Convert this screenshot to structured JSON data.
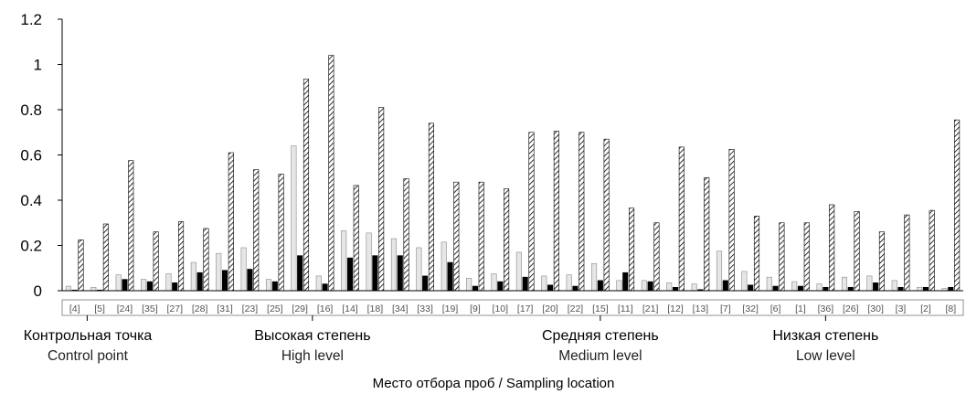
{
  "chart_data": {
    "type": "bar",
    "xlabel": "Место отбора проб / Sampling location",
    "ylim": [
      0,
      1.2
    ],
    "yticks": [
      "0",
      "0.2",
      "0.4",
      "0.6",
      "0.8",
      "1",
      "1.2"
    ],
    "categories": [
      "[4]",
      "[5]",
      "[24]",
      "[35]",
      "[27]",
      "[28]",
      "[31]",
      "[23]",
      "[25]",
      "[29]",
      "[16]",
      "[14]",
      "[18]",
      "[34]",
      "[33]",
      "[19]",
      "[9]",
      "[10]",
      "[17]",
      "[20]",
      "[22]",
      "[15]",
      "[11]",
      "[21]",
      "[12]",
      "[13]",
      "[7]",
      "[32]",
      "[6]",
      "[1]",
      "[36]",
      "[26]",
      "[30]",
      "[3]",
      "[2]",
      "[8]"
    ],
    "series": [
      {
        "color": "#e6e6e6",
        "pattern": "solid-light",
        "values": [
          0.02,
          0.015,
          0.07,
          0.05,
          0.075,
          0.125,
          0.165,
          0.19,
          0.05,
          0.64,
          0.065,
          0.265,
          0.255,
          0.23,
          0.19,
          0.215,
          0.055,
          0.075,
          0.17,
          0.065,
          0.07,
          0.12,
          0.045,
          0.045,
          0.035,
          0.03,
          0.175,
          0.085,
          0.06,
          0.04,
          0.03,
          0.06,
          0.065,
          0.045,
          0.015,
          0.01
        ]
      },
      {
        "color": "#000000",
        "pattern": "solid-black",
        "values": [
          0.003,
          0.003,
          0.05,
          0.04,
          0.035,
          0.08,
          0.09,
          0.095,
          0.04,
          0.155,
          0.03,
          0.145,
          0.155,
          0.155,
          0.065,
          0.125,
          0.02,
          0.04,
          0.06,
          0.025,
          0.02,
          0.045,
          0.08,
          0.04,
          0.015,
          0.005,
          0.045,
          0.025,
          0.02,
          0.02,
          0.015,
          0.015,
          0.035,
          0.015,
          0.015,
          0.015
        ]
      },
      {
        "color": "#ffffff",
        "pattern": "diagonal-hatch",
        "values": [
          0.225,
          0.295,
          0.575,
          0.26,
          0.305,
          0.275,
          0.61,
          0.535,
          0.515,
          0.935,
          1.04,
          0.465,
          0.81,
          0.495,
          0.74,
          0.48,
          0.48,
          0.45,
          0.7,
          0.705,
          0.7,
          0.67,
          0.365,
          0.3,
          0.635,
          0.5,
          0.625,
          0.33,
          0.3,
          0.3,
          0.38,
          0.35,
          0.26,
          0.335,
          0.355,
          0.755
        ]
      }
    ],
    "groups": [
      {
        "label_ru": "Контрольная точка",
        "label_en": "Control point",
        "count": 2
      },
      {
        "label_ru": "Высокая степень",
        "label_en": "High level",
        "count": 16
      },
      {
        "label_ru": "Средняя степень",
        "label_en": "Medium level",
        "count": 7
      },
      {
        "label_ru": "Низкая степень",
        "label_en": "Low level",
        "count": 11
      }
    ],
    "grid": false
  }
}
